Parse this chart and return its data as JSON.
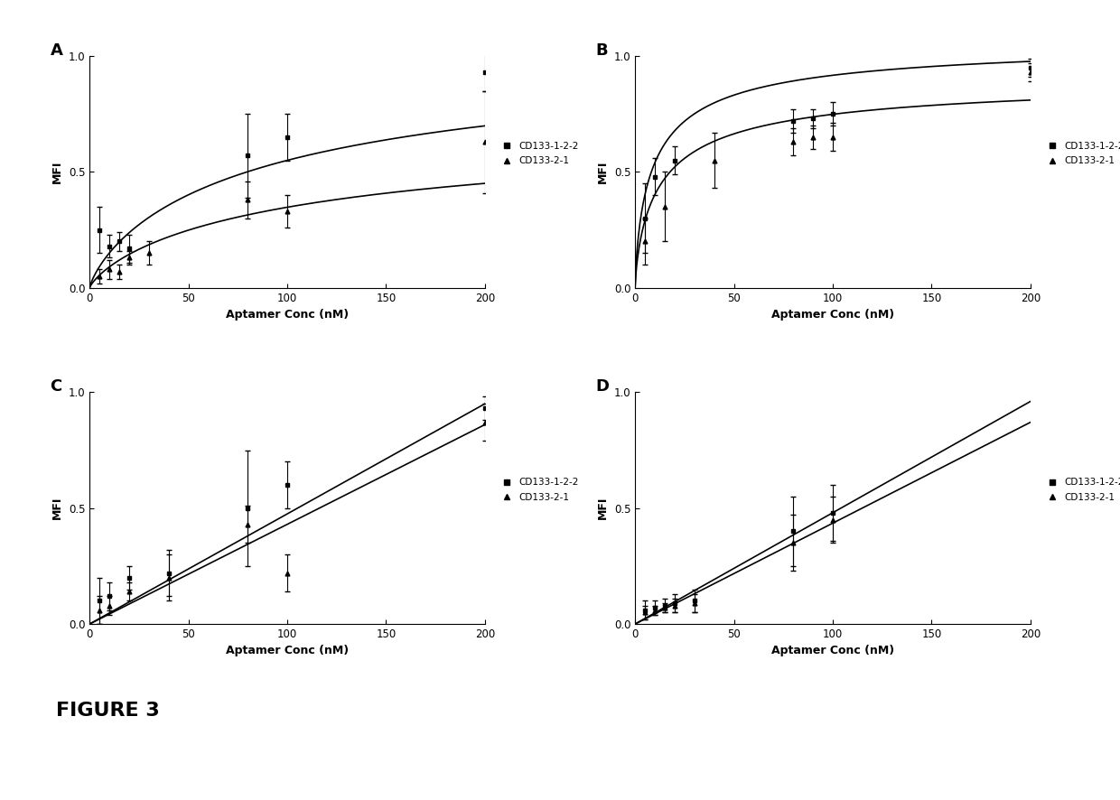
{
  "panels": [
    "A",
    "B",
    "C",
    "D"
  ],
  "xlabel": "Aptamer Conc (nM)",
  "ylabel": "MFI",
  "xlim": [
    0,
    200
  ],
  "ylim": [
    0.0,
    1.0
  ],
  "legend_labels": [
    "CD133-1-2-2",
    "CD133-2-1"
  ],
  "background_color": "#ffffff",
  "panel_A": {
    "curve1": {
      "Bmax": 1.1,
      "Kd": 100,
      "n": 0.8
    },
    "curve2": {
      "Bmax": 0.75,
      "Kd": 120,
      "n": 0.8
    },
    "data1_x": [
      5,
      10,
      15,
      20,
      80,
      100,
      200
    ],
    "data1_y": [
      0.25,
      0.18,
      0.2,
      0.17,
      0.57,
      0.65,
      0.93
    ],
    "data1_yerr": [
      0.1,
      0.05,
      0.04,
      0.06,
      0.18,
      0.1,
      0.08
    ],
    "data2_x": [
      5,
      10,
      15,
      20,
      30,
      80,
      100,
      200
    ],
    "data2_y": [
      0.05,
      0.08,
      0.07,
      0.13,
      0.15,
      0.38,
      0.33,
      0.63
    ],
    "data2_yerr": [
      0.03,
      0.04,
      0.03,
      0.03,
      0.05,
      0.08,
      0.07,
      0.22
    ]
  },
  "panel_B": {
    "curve1": {
      "Bmax": 1.08,
      "Kd": 10,
      "n": 0.75
    },
    "curve2": {
      "Bmax": 0.92,
      "Kd": 14,
      "n": 0.75
    },
    "data1_x": [
      5,
      10,
      20,
      80,
      90,
      100,
      200
    ],
    "data1_y": [
      0.3,
      0.48,
      0.55,
      0.72,
      0.73,
      0.75,
      0.95
    ],
    "data1_yerr": [
      0.15,
      0.08,
      0.06,
      0.05,
      0.04,
      0.05,
      0.04
    ],
    "data2_x": [
      5,
      15,
      40,
      80,
      90,
      100,
      200
    ],
    "data2_y": [
      0.2,
      0.35,
      0.55,
      0.63,
      0.65,
      0.65,
      0.93
    ],
    "data2_yerr": [
      0.1,
      0.15,
      0.12,
      0.06,
      0.05,
      0.06,
      0.04
    ]
  },
  "panel_C": {
    "slope1": 0.00475,
    "slope2": 0.0043,
    "data1_x": [
      5,
      10,
      20,
      40,
      80,
      100,
      200
    ],
    "data1_y": [
      0.1,
      0.12,
      0.2,
      0.22,
      0.5,
      0.6,
      0.93
    ],
    "data1_yerr": [
      0.1,
      0.06,
      0.05,
      0.1,
      0.25,
      0.1,
      0.05
    ],
    "data2_x": [
      5,
      10,
      20,
      40,
      80,
      100,
      200
    ],
    "data2_y": [
      0.06,
      0.08,
      0.14,
      0.2,
      0.43,
      0.22,
      0.87
    ],
    "data2_yerr": [
      0.06,
      0.04,
      0.04,
      0.1,
      0.08,
      0.08,
      0.08
    ]
  },
  "panel_D": {
    "slope1": 0.0048,
    "slope2": 0.00435,
    "data1_x": [
      5,
      10,
      15,
      20,
      30,
      80,
      100
    ],
    "data1_y": [
      0.06,
      0.07,
      0.08,
      0.09,
      0.1,
      0.4,
      0.48
    ],
    "data1_yerr": [
      0.04,
      0.03,
      0.03,
      0.04,
      0.05,
      0.15,
      0.12
    ],
    "data2_x": [
      5,
      10,
      15,
      20,
      30,
      80,
      100
    ],
    "data2_y": [
      0.05,
      0.06,
      0.07,
      0.08,
      0.09,
      0.35,
      0.45
    ],
    "data2_yerr": [
      0.03,
      0.02,
      0.02,
      0.03,
      0.04,
      0.12,
      0.1
    ]
  }
}
